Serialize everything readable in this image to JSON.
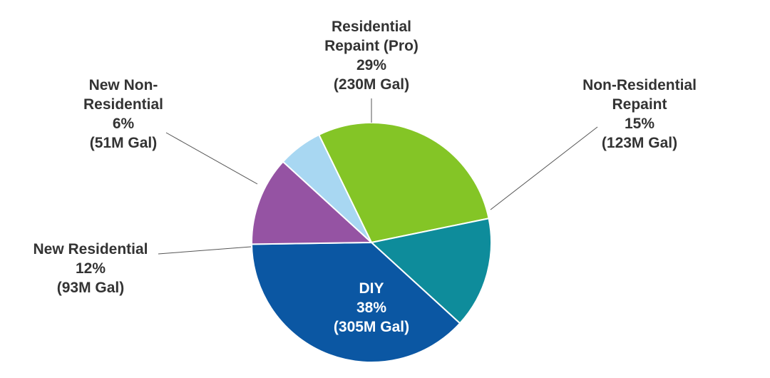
{
  "chart_data": {
    "type": "pie",
    "slices": [
      {
        "label_lines": [
          "Residential",
          "Repaint (Pro)",
          "29%",
          "(230M Gal)"
        ],
        "percent": 29,
        "volume": "230M Gal",
        "color": "#84c526"
      },
      {
        "label_lines": [
          "Non-Residential",
          "Repaint",
          "15%",
          "(123M Gal)"
        ],
        "percent": 15,
        "volume": "123M Gal",
        "color": "#0e8c9b"
      },
      {
        "label_lines": [
          "DIY",
          "38%",
          "(305M Gal)"
        ],
        "percent": 38,
        "volume": "305M Gal",
        "color": "#0b57a3"
      },
      {
        "label_lines": [
          "New Residential",
          "12%",
          "(93M Gal)"
        ],
        "percent": 12,
        "volume": "93M Gal",
        "color": "#9553a3"
      },
      {
        "label_lines": [
          "New Non-",
          "Residential",
          "6%",
          "(51M Gal)"
        ],
        "percent": 6,
        "volume": "51M Gal",
        "color": "#a8d7f2"
      }
    ]
  }
}
